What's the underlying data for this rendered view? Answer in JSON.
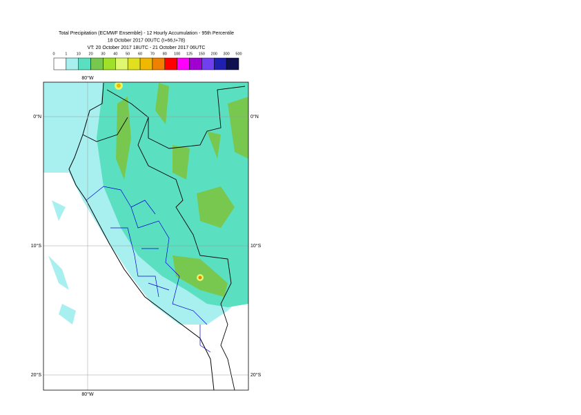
{
  "header": {
    "title_lines": [
      "Total Precipitation (ECMWF Ensemble) - 12 Hourly Accumulation - 95th Percentile",
      "18 October 2017 00UTC (t+66,t+78)",
      "VT: 20 October 2017 18UTC - 21 October 2017 06UTC"
    ]
  },
  "legend": {
    "labels": [
      "0",
      "1",
      "10",
      "20",
      "30",
      "40",
      "50",
      "60",
      "70",
      "80",
      "100",
      "125",
      "150",
      "200",
      "300",
      "500"
    ],
    "colors": [
      "#ffffff",
      "#a8f0f0",
      "#5ae0c0",
      "#78c850",
      "#a0e028",
      "#e0f870",
      "#e0e020",
      "#f0b800",
      "#f08000",
      "#ff0000",
      "#ff00ff",
      "#a000d0",
      "#7040f0",
      "#2020b0",
      "#101050"
    ]
  },
  "map": {
    "lon_labels": [
      "80°W",
      "80°W"
    ],
    "lat_labels": [
      "0°N",
      "0°N",
      "10°S",
      "10°S",
      "20°S",
      "20°S"
    ]
  }
}
